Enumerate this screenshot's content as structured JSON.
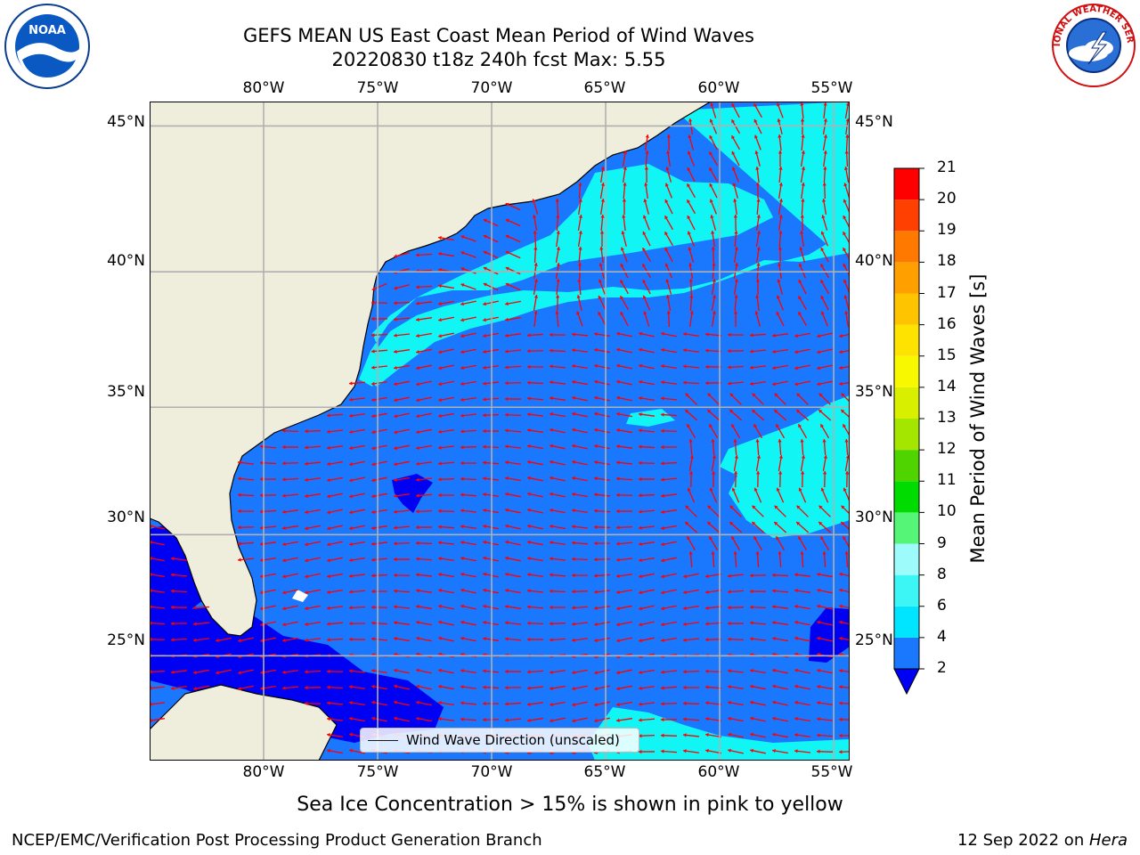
{
  "header": {
    "title_line1": "GEFS MEAN US East Coast Mean Period of Wind Waves",
    "title_line2": "20220830 t18z 240h fcst   Max: 5.55"
  },
  "logos": {
    "left": {
      "name": "noaa-logo",
      "text": "NOAA"
    },
    "right": {
      "name": "national-weather-service-logo",
      "text": "NATIONAL WEATHER SERVICE"
    }
  },
  "map": {
    "lon_range": [
      -85,
      -54.3
    ],
    "lat_range": [
      20.5,
      45.8
    ],
    "lon_ticks": [
      {
        "value": -80,
        "label": "80°W"
      },
      {
        "value": -75,
        "label": "75°W"
      },
      {
        "value": -70,
        "label": "70°W"
      },
      {
        "value": -65,
        "label": "65°W"
      },
      {
        "value": -60,
        "label": "60°W"
      },
      {
        "value": -55,
        "label": "55°W"
      }
    ],
    "lat_ticks": [
      {
        "value": 45,
        "label": "45°N"
      },
      {
        "value": 40,
        "label": "40°N"
      },
      {
        "value": 35,
        "label": "35°N"
      },
      {
        "value": 30,
        "label": "30°N"
      },
      {
        "value": 25,
        "label": "25°N"
      }
    ],
    "gridlines": true,
    "colors": {
      "land": "#efeddc",
      "ocean_2_4": "#1a78ff",
      "low_under_2": "#0000f2",
      "band_4_6": "#12f5f5",
      "vector": "#ff0000",
      "coastline": "#000000",
      "grid": "#b0b0b0"
    },
    "legend": {
      "label": "Wind Wave Direction (unscaled)"
    }
  },
  "colorbar": {
    "title": "Mean Period of Wind Waves [s]",
    "tick_labels": [
      "2",
      "4",
      "6",
      "8",
      "9",
      "10",
      "11",
      "12",
      "13",
      "14",
      "15",
      "16",
      "17",
      "18",
      "19",
      "20",
      "21"
    ],
    "band_colors": [
      "#1a78ff",
      "#00e5ff",
      "#3cf6f6",
      "#9dfbfb",
      "#55f578",
      "#00dc00",
      "#4fd400",
      "#a5e600",
      "#d8f000",
      "#f8f800",
      "#ffe300",
      "#ffc400",
      "#ffa000",
      "#ff7800",
      "#ff4000",
      "#ff0000"
    ],
    "under_color": "#0000f2"
  },
  "footer": {
    "note": "Sea Ice Concentration > 15% is shown in pink to yellow",
    "left": "NCEP/EMC/Verification Post Processing Product Generation Branch",
    "right_prefix": "12 Sep 2022 on ",
    "right_host": "Hera"
  }
}
